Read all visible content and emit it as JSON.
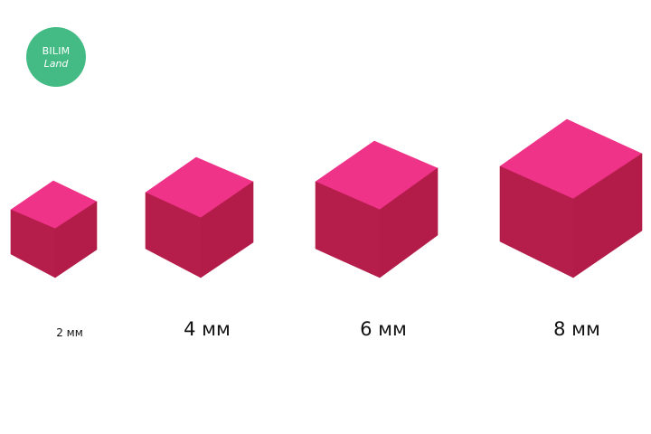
{
  "logo": {
    "line1": "BILIM",
    "line2": "Land",
    "color": "#44bb84"
  },
  "colors": {
    "top_face": "#ee3388",
    "front_face": "#b51d4a",
    "side_face": "#b31c48"
  },
  "cubes": [
    {
      "size_label": "2 мм"
    },
    {
      "size_label": "4 мм"
    },
    {
      "size_label": "6 мм"
    },
    {
      "size_label": "8 мм"
    }
  ]
}
